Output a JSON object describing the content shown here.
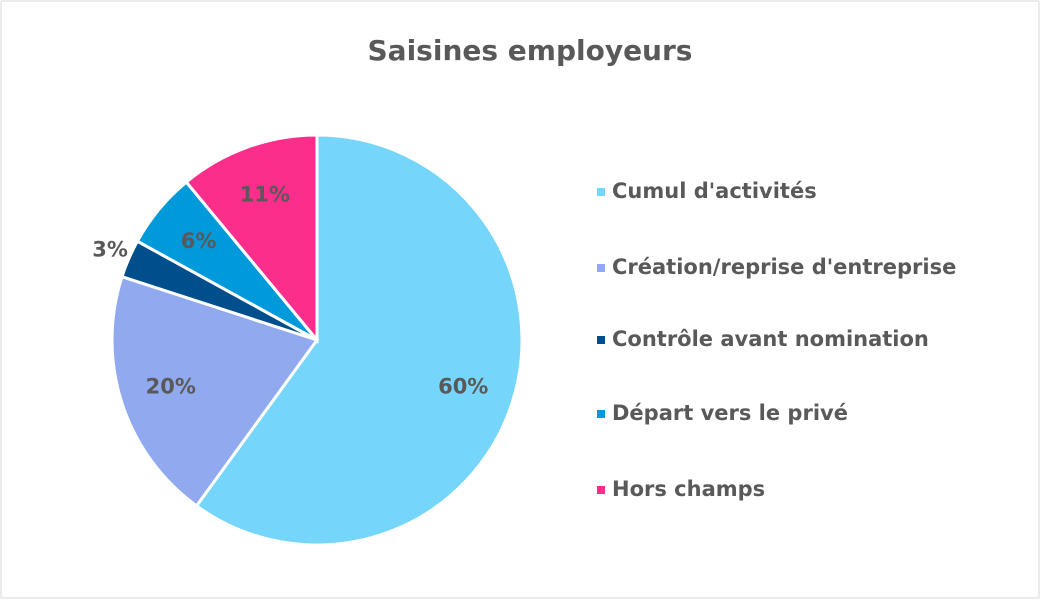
{
  "chart_data": {
    "type": "pie",
    "title": "Saisines employeurs",
    "categories": [
      "Cumul d'activités",
      "Création/reprise d'entreprise",
      "Contrôle avant nomination",
      "Départ vers le privé",
      "Hors champs"
    ],
    "values": [
      60,
      20,
      3,
      6,
      11
    ],
    "value_labels": [
      "60%",
      "20%",
      "3%",
      "6%",
      "11%"
    ],
    "colors": [
      "#75d5fb",
      "#91a9ef",
      "#004e8c",
      "#0099da",
      "#fc2e8c"
    ],
    "legend": "right"
  }
}
